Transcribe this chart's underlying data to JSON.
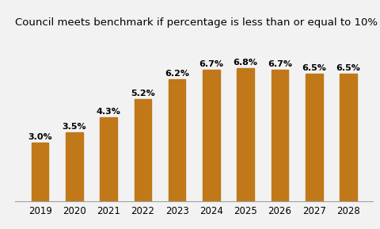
{
  "categories": [
    "2019",
    "2020",
    "2021",
    "2022",
    "2023",
    "2024",
    "2025",
    "2026",
    "2027",
    "2028"
  ],
  "values": [
    3.0,
    3.5,
    4.3,
    5.2,
    6.2,
    6.7,
    6.8,
    6.7,
    6.5,
    6.5
  ],
  "labels": [
    "3.0%",
    "3.5%",
    "4.3%",
    "5.2%",
    "6.2%",
    "6.7%",
    "6.8%",
    "6.7%",
    "6.5%",
    "6.5%"
  ],
  "bar_color": "#C07818",
  "title": "Council meets benchmark if percentage is less than or equal to 10%",
  "title_fontsize": 9.5,
  "label_fontsize": 8,
  "tick_fontsize": 8.5,
  "ylim": [
    0,
    8.5
  ],
  "background_color": "#F2F2F2",
  "bar_width": 0.5
}
